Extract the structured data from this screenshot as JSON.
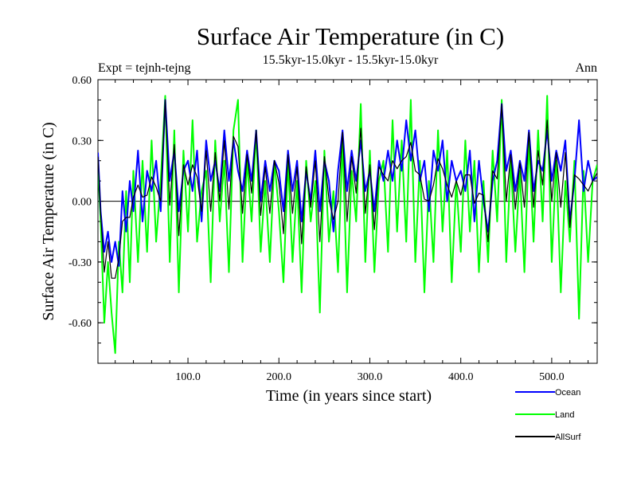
{
  "chart_data": {
    "type": "line",
    "title": "Surface Air Temperature (in C)",
    "subtitle": "15.5kyr-15.0kyr - 15.5kyr-15.0kyr",
    "left_label": "Expt = tejnh-tejng",
    "right_label": "Ann",
    "xlabel": "Time (in years since start)",
    "ylabel": "Surface Air Temperature (in C)",
    "xlim": [
      1,
      550
    ],
    "ylim": [
      -0.8,
      0.6
    ],
    "x_ticks": [
      100,
      200,
      300,
      400,
      500
    ],
    "x_tick_labels": [
      "100.0",
      "200.0",
      "300.0",
      "400.0",
      "500.0"
    ],
    "y_ticks": [
      -0.6,
      -0.3,
      0.0,
      0.3,
      0.6
    ],
    "y_tick_labels": [
      "-0.60",
      "-0.30",
      "0.00",
      "0.30",
      "0.60"
    ],
    "zero_line": true,
    "legend_position": "bottom-right",
    "series": [
      {
        "name": "Land",
        "color": "#00ff00",
        "x": [
          1,
          4,
          8,
          12,
          16,
          20,
          24,
          28,
          32,
          36,
          40,
          45,
          50,
          55,
          60,
          65,
          70,
          75,
          80,
          85,
          90,
          95,
          100,
          105,
          110,
          115,
          120,
          125,
          130,
          135,
          140,
          145,
          150,
          155,
          160,
          165,
          170,
          175,
          180,
          185,
          190,
          195,
          200,
          205,
          210,
          215,
          220,
          225,
          230,
          235,
          240,
          245,
          250,
          255,
          260,
          265,
          270,
          275,
          280,
          285,
          290,
          295,
          300,
          305,
          310,
          315,
          320,
          325,
          330,
          335,
          340,
          345,
          350,
          355,
          360,
          365,
          370,
          375,
          380,
          385,
          390,
          395,
          400,
          405,
          410,
          415,
          420,
          425,
          430,
          435,
          440,
          445,
          450,
          455,
          460,
          465,
          470,
          475,
          480,
          485,
          490,
          495,
          500,
          505,
          510,
          515,
          520,
          525,
          530,
          535,
          540,
          545,
          550
        ],
        "values": [
          0.18,
          -0.1,
          -0.6,
          -0.3,
          -0.55,
          -0.75,
          -0.2,
          -0.45,
          0.05,
          -0.4,
          0.15,
          -0.3,
          0.2,
          -0.25,
          0.3,
          -0.2,
          0.1,
          0.52,
          -0.3,
          0.35,
          -0.45,
          0.25,
          -0.15,
          0.4,
          -0.2,
          0.05,
          0.15,
          -0.4,
          0.3,
          -0.1,
          0.2,
          -0.35,
          0.35,
          0.5,
          -0.3,
          0.2,
          -0.1,
          0.35,
          -0.25,
          0.1,
          -0.3,
          0.2,
          -0.05,
          -0.4,
          0.2,
          -0.3,
          0.1,
          -0.45,
          0.2,
          -0.1,
          0.1,
          -0.55,
          0.25,
          -0.2,
          0.05,
          -0.35,
          0.3,
          -0.45,
          0.15,
          -0.1,
          0.48,
          -0.3,
          0.25,
          -0.35,
          0.1,
          0.2,
          -0.25,
          0.4,
          -0.15,
          0.3,
          -0.2,
          0.5,
          -0.3,
          0.2,
          -0.45,
          0.1,
          -0.3,
          0.35,
          -0.15,
          0.25,
          -0.4,
          0.1,
          -0.25,
          0.3,
          -0.15,
          0.2,
          -0.35,
          0.1,
          -0.3,
          0.25,
          -0.1,
          0.5,
          -0.3,
          0.2,
          -0.25,
          0.15,
          -0.35,
          0.3,
          -0.2,
          0.35,
          -0.1,
          0.52,
          -0.3,
          0.2,
          -0.45,
          0.1,
          -0.2,
          0.2,
          -0.58,
          0.15,
          -0.3,
          0.1,
          0.18
        ]
      },
      {
        "name": "Ocean",
        "color": "#0000ff",
        "x": [
          1,
          4,
          8,
          12,
          16,
          20,
          24,
          28,
          32,
          36,
          40,
          45,
          50,
          55,
          60,
          65,
          70,
          75,
          80,
          85,
          90,
          95,
          100,
          105,
          110,
          115,
          120,
          125,
          130,
          135,
          140,
          145,
          150,
          155,
          160,
          165,
          170,
          175,
          180,
          185,
          190,
          195,
          200,
          205,
          210,
          215,
          220,
          225,
          230,
          235,
          240,
          245,
          250,
          255,
          260,
          265,
          270,
          275,
          280,
          285,
          290,
          295,
          300,
          305,
          310,
          315,
          320,
          325,
          330,
          335,
          340,
          345,
          350,
          355,
          360,
          365,
          370,
          375,
          380,
          385,
          390,
          395,
          400,
          405,
          410,
          415,
          420,
          425,
          430,
          435,
          440,
          445,
          450,
          455,
          460,
          465,
          470,
          475,
          480,
          485,
          490,
          495,
          500,
          505,
          510,
          515,
          520,
          525,
          530,
          535,
          540,
          545,
          550
        ],
        "values": [
          0.24,
          -0.05,
          -0.25,
          -0.15,
          -0.3,
          -0.2,
          -0.32,
          0.05,
          -0.15,
          0.1,
          -0.05,
          0.25,
          -0.1,
          0.15,
          0.05,
          0.2,
          -0.05,
          0.5,
          0.1,
          0.25,
          -0.05,
          0.15,
          0.2,
          0.05,
          0.25,
          -0.1,
          0.3,
          0.1,
          0.2,
          0.05,
          0.35,
          0.1,
          0.3,
          0.15,
          0.05,
          0.25,
          0.1,
          0.35,
          0.0,
          0.2,
          0.05,
          0.2,
          0.15,
          -0.05,
          0.25,
          0.05,
          0.2,
          -0.1,
          0.15,
          0.0,
          0.25,
          -0.05,
          0.2,
          0.1,
          -0.15,
          0.15,
          0.35,
          0.05,
          0.25,
          0.1,
          0.3,
          0.05,
          0.15,
          -0.05,
          0.2,
          0.1,
          0.25,
          0.1,
          0.3,
          0.15,
          0.4,
          0.2,
          0.35,
          0.1,
          0.2,
          -0.05,
          0.25,
          0.15,
          0.3,
          0.0,
          0.2,
          0.1,
          0.15,
          0.05,
          0.25,
          -0.1,
          0.2,
          0.0,
          -0.15,
          0.1,
          0.2,
          0.48,
          0.15,
          0.25,
          0.05,
          0.2,
          0.1,
          0.35,
          0.05,
          0.2,
          0.15,
          0.35,
          0.1,
          0.25,
          0.15,
          0.3,
          -0.1,
          0.1,
          0.4,
          0.05,
          0.2,
          0.1,
          0.12
        ]
      },
      {
        "name": "AllSurf",
        "color": "#000000",
        "x": [
          1,
          4,
          8,
          12,
          16,
          20,
          24,
          28,
          32,
          36,
          40,
          45,
          50,
          55,
          60,
          65,
          70,
          75,
          80,
          85,
          90,
          95,
          100,
          105,
          110,
          115,
          120,
          125,
          130,
          135,
          140,
          145,
          150,
          155,
          160,
          165,
          170,
          175,
          180,
          185,
          190,
          195,
          200,
          205,
          210,
          215,
          220,
          225,
          230,
          235,
          240,
          245,
          250,
          255,
          260,
          265,
          270,
          275,
          280,
          285,
          290,
          295,
          300,
          305,
          310,
          315,
          320,
          325,
          330,
          335,
          340,
          345,
          350,
          355,
          360,
          365,
          370,
          375,
          380,
          385,
          390,
          395,
          400,
          405,
          410,
          415,
          420,
          425,
          430,
          435,
          440,
          445,
          450,
          455,
          460,
          465,
          470,
          475,
          480,
          485,
          490,
          495,
          500,
          505,
          510,
          515,
          520,
          525,
          530,
          535,
          540,
          545,
          550
        ],
        "values": [
          0.22,
          -0.06,
          -0.35,
          -0.2,
          -0.38,
          -0.38,
          -0.28,
          -0.1,
          -0.08,
          -0.08,
          0.02,
          0.08,
          0.02,
          0.03,
          0.12,
          0.07,
          0.0,
          0.5,
          -0.02,
          0.28,
          -0.17,
          0.18,
          0.08,
          0.18,
          0.12,
          -0.05,
          0.25,
          -0.05,
          0.24,
          0.0,
          0.3,
          -0.04,
          0.32,
          0.27,
          -0.06,
          0.23,
          0.04,
          0.35,
          -0.07,
          0.17,
          -0.06,
          0.2,
          0.09,
          -0.16,
          0.23,
          -0.06,
          0.17,
          -0.21,
          0.17,
          -0.03,
          0.2,
          -0.2,
          0.22,
          0.01,
          -0.09,
          0.0,
          0.34,
          -0.1,
          0.22,
          0.04,
          0.36,
          -0.06,
          0.18,
          -0.14,
          0.17,
          0.13,
          0.1,
          0.2,
          0.16,
          0.2,
          0.22,
          0.29,
          0.15,
          0.13,
          0.01,
          0.0,
          0.08,
          0.21,
          0.16,
          0.08,
          0.02,
          0.1,
          0.03,
          0.13,
          0.13,
          -0.01,
          0.04,
          0.03,
          -0.2,
          0.15,
          0.11,
          0.48,
          0.0,
          0.23,
          -0.04,
          0.19,
          -0.03,
          0.34,
          -0.03,
          0.25,
          0.08,
          0.4,
          0.0,
          0.24,
          -0.03,
          0.24,
          -0.13,
          0.13,
          0.11,
          0.08,
          0.05,
          0.1,
          0.14
        ]
      }
    ]
  }
}
